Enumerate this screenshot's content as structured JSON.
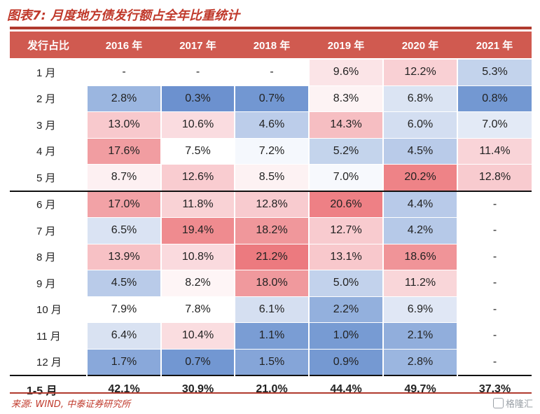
{
  "title": "图表7: 月度地方债发行额占全年比重统计",
  "table": {
    "header": [
      "发行占比",
      "2016 年",
      "2017 年",
      "2018 年",
      "2019 年",
      "2020 年",
      "2021 年"
    ],
    "rows": [
      {
        "label": "1 月",
        "cells": [
          {
            "text": "-",
            "bg": "#ffffff"
          },
          {
            "text": "-",
            "bg": "#ffffff"
          },
          {
            "text": "-",
            "bg": "#ffffff"
          },
          {
            "text": "9.6%",
            "bg": "#fbe4e7"
          },
          {
            "text": "12.2%",
            "bg": "#f9d0d4"
          },
          {
            "text": "5.3%",
            "bg": "#c3d3ec"
          }
        ]
      },
      {
        "label": "2 月",
        "cells": [
          {
            "text": "2.8%",
            "bg": "#9bb6e0"
          },
          {
            "text": "0.3%",
            "bg": "#6c91cf"
          },
          {
            "text": "0.7%",
            "bg": "#7297d2"
          },
          {
            "text": "8.3%",
            "bg": "#fdf3f4"
          },
          {
            "text": "6.8%",
            "bg": "#dbe4f3"
          },
          {
            "text": "0.8%",
            "bg": "#7398d2"
          }
        ]
      },
      {
        "label": "3 月",
        "cells": [
          {
            "text": "13.0%",
            "bg": "#f8c9cd"
          },
          {
            "text": "10.6%",
            "bg": "#fadce0"
          },
          {
            "text": "4.6%",
            "bg": "#bccdea"
          },
          {
            "text": "14.3%",
            "bg": "#f6bec2"
          },
          {
            "text": "6.0%",
            "bg": "#d3def1"
          },
          {
            "text": "7.0%",
            "bg": "#e3eaf6"
          }
        ]
      },
      {
        "label": "4 月",
        "cells": [
          {
            "text": "17.6%",
            "bg": "#f19da1"
          },
          {
            "text": "7.5%",
            "bg": "#ffffff"
          },
          {
            "text": "7.2%",
            "bg": "#f5f8fd"
          },
          {
            "text": "5.2%",
            "bg": "#c4d4ec"
          },
          {
            "text": "4.5%",
            "bg": "#b9cbe9"
          },
          {
            "text": "11.4%",
            "bg": "#f9d4d8"
          }
        ]
      },
      {
        "label": "5 月",
        "cells": [
          {
            "text": "8.7%",
            "bg": "#fdf0f2"
          },
          {
            "text": "12.6%",
            "bg": "#f9ccd0"
          },
          {
            "text": "8.5%",
            "bg": "#fdf2f3"
          },
          {
            "text": "7.0%",
            "bg": "#f7f9fd"
          },
          {
            "text": "20.2%",
            "bg": "#ee8387"
          },
          {
            "text": "12.8%",
            "bg": "#f8cbcf"
          }
        ]
      },
      {
        "label": "6 月",
        "cells": [
          {
            "text": "17.0%",
            "bg": "#f2a2a6"
          },
          {
            "text": "11.8%",
            "bg": "#f9d2d5"
          },
          {
            "text": "12.8%",
            "bg": "#f8cbcf"
          },
          {
            "text": "20.6%",
            "bg": "#ee8085"
          },
          {
            "text": "4.4%",
            "bg": "#b8cae9"
          },
          {
            "text": "-",
            "bg": "#ffffff"
          }
        ]
      },
      {
        "label": "7 月",
        "cells": [
          {
            "text": "6.5%",
            "bg": "#dae3f3"
          },
          {
            "text": "19.4%",
            "bg": "#ef8b8f"
          },
          {
            "text": "18.2%",
            "bg": "#f0979b"
          },
          {
            "text": "12.7%",
            "bg": "#f8cbcf"
          },
          {
            "text": "4.2%",
            "bg": "#b6c9e8"
          },
          {
            "text": "-",
            "bg": "#ffffff"
          }
        ]
      },
      {
        "label": "8 月",
        "cells": [
          {
            "text": "13.9%",
            "bg": "#f7c1c5"
          },
          {
            "text": "10.8%",
            "bg": "#fadade"
          },
          {
            "text": "21.2%",
            "bg": "#ec7a7f"
          },
          {
            "text": "13.1%",
            "bg": "#f8c8cc"
          },
          {
            "text": "18.6%",
            "bg": "#f09498"
          },
          {
            "text": "-",
            "bg": "#ffffff"
          }
        ]
      },
      {
        "label": "9 月",
        "cells": [
          {
            "text": "4.5%",
            "bg": "#b9cbe9"
          },
          {
            "text": "8.2%",
            "bg": "#fef5f6"
          },
          {
            "text": "18.0%",
            "bg": "#f0999d"
          },
          {
            "text": "5.0%",
            "bg": "#c2d2ec"
          },
          {
            "text": "11.2%",
            "bg": "#f9d6d9"
          },
          {
            "text": "-",
            "bg": "#ffffff"
          }
        ]
      },
      {
        "label": "10 月",
        "cells": [
          {
            "text": "7.9%",
            "bg": "#ffffff"
          },
          {
            "text": "7.8%",
            "bg": "#ffffff"
          },
          {
            "text": "6.1%",
            "bg": "#d5dff1"
          },
          {
            "text": "2.2%",
            "bg": "#93b0dd"
          },
          {
            "text": "6.9%",
            "bg": "#e0e7f5"
          },
          {
            "text": "-",
            "bg": "#ffffff"
          }
        ]
      },
      {
        "label": "11 月",
        "cells": [
          {
            "text": "6.4%",
            "bg": "#d9e2f2"
          },
          {
            "text": "10.4%",
            "bg": "#faddE0"
          },
          {
            "text": "1.1%",
            "bg": "#7a9dd4"
          },
          {
            "text": "1.0%",
            "bg": "#779bd3"
          },
          {
            "text": "2.1%",
            "bg": "#91aedc"
          },
          {
            "text": "-",
            "bg": "#ffffff"
          }
        ]
      },
      {
        "label": "12 月",
        "cells": [
          {
            "text": "1.7%",
            "bg": "#89a8da"
          },
          {
            "text": "0.7%",
            "bg": "#7297d2"
          },
          {
            "text": "1.5%",
            "bg": "#85a5d8"
          },
          {
            "text": "0.9%",
            "bg": "#7599d2"
          },
          {
            "text": "2.8%",
            "bg": "#9bb6e0"
          },
          {
            "text": "-",
            "bg": "#ffffff"
          }
        ]
      }
    ],
    "total": {
      "label": "1-5 月",
      "cells": [
        "42.1%",
        "30.9%",
        "21.0%",
        "44.4%",
        "49.7%",
        "37.3%"
      ]
    }
  },
  "source": "来源: WIND, 中泰证券研究所",
  "watermark": "格隆汇"
}
